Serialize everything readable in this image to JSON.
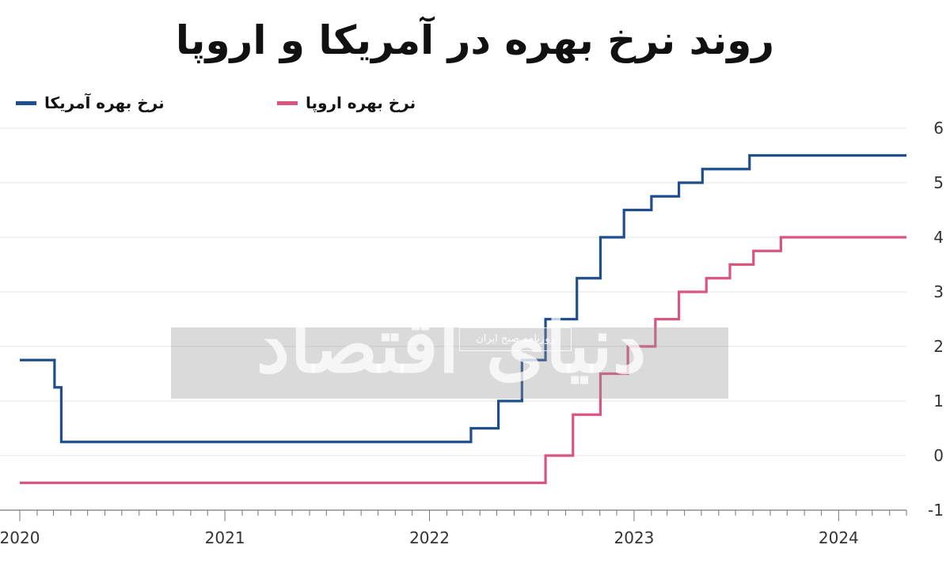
{
  "title": "روند نرخ بهره در آمریکا و اروپا",
  "watermark": {
    "main": "دنیای اقتصاد",
    "sub": "روزنامه صبح ایران"
  },
  "chart_data": {
    "type": "line",
    "step": true,
    "x_ticks": [
      "2020",
      "2021",
      "2022",
      "2023",
      "2024"
    ],
    "x_range": [
      "2020-01-01",
      "2024-05-01"
    ],
    "y_ticks": [
      -1,
      0,
      1,
      2,
      3,
      4,
      5,
      6
    ],
    "ylim": [
      -1,
      6
    ],
    "y_axis_side": "right",
    "grid": "horizontal",
    "legend_position": "top",
    "series": [
      {
        "name": "نرخ بهره آمریکا",
        "color": "#1f4e8c",
        "points": [
          {
            "date": "2020-01-01",
            "value": 1.75
          },
          {
            "date": "2020-03-03",
            "value": 1.25
          },
          {
            "date": "2020-03-15",
            "value": 0.25
          },
          {
            "date": "2022-03-16",
            "value": 0.5
          },
          {
            "date": "2022-05-04",
            "value": 1.0
          },
          {
            "date": "2022-06-15",
            "value": 1.75
          },
          {
            "date": "2022-07-27",
            "value": 2.5
          },
          {
            "date": "2022-09-21",
            "value": 3.25
          },
          {
            "date": "2022-11-02",
            "value": 4.0
          },
          {
            "date": "2022-12-14",
            "value": 4.5
          },
          {
            "date": "2023-02-01",
            "value": 4.75
          },
          {
            "date": "2023-03-22",
            "value": 5.0
          },
          {
            "date": "2023-05-03",
            "value": 5.25
          },
          {
            "date": "2023-07-26",
            "value": 5.5
          },
          {
            "date": "2024-05-01",
            "value": 5.5
          }
        ]
      },
      {
        "name": "نرخ بهره اروپا",
        "color": "#d9557e",
        "points": [
          {
            "date": "2020-01-01",
            "value": -0.5
          },
          {
            "date": "2022-07-27",
            "value": 0.0
          },
          {
            "date": "2022-09-14",
            "value": 0.75
          },
          {
            "date": "2022-11-02",
            "value": 1.5
          },
          {
            "date": "2022-12-21",
            "value": 2.0
          },
          {
            "date": "2023-02-08",
            "value": 2.5
          },
          {
            "date": "2023-03-22",
            "value": 3.0
          },
          {
            "date": "2023-05-10",
            "value": 3.25
          },
          {
            "date": "2023-06-21",
            "value": 3.5
          },
          {
            "date": "2023-08-02",
            "value": 3.75
          },
          {
            "date": "2023-09-20",
            "value": 4.0
          },
          {
            "date": "2024-05-01",
            "value": 4.0
          }
        ]
      }
    ]
  }
}
